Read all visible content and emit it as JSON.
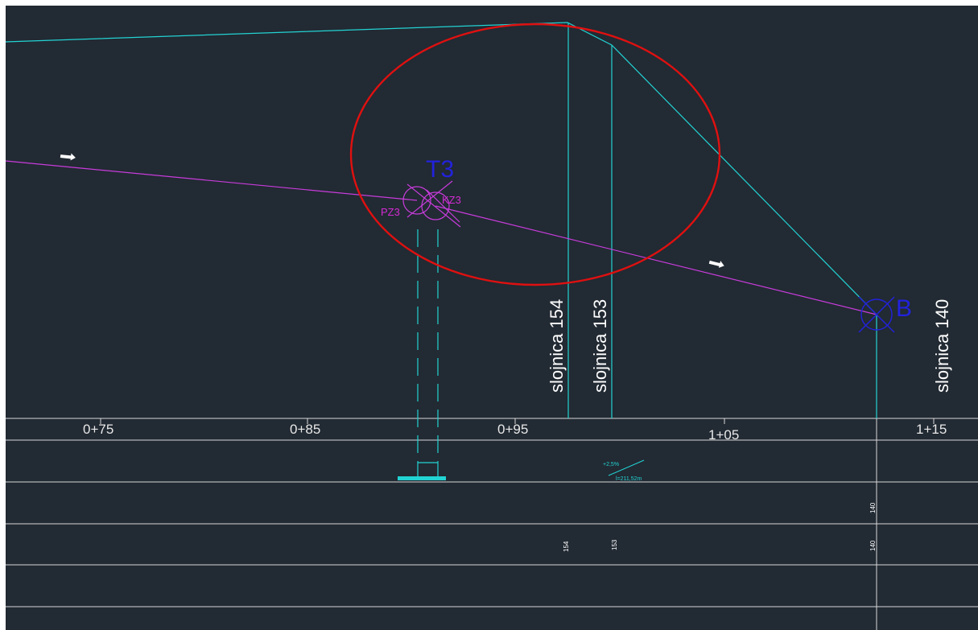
{
  "colors": {
    "background": "#222a33",
    "frame": "#ffffff",
    "terrain": "#22d3d3",
    "pipe": "#c83cdc",
    "highlight": "#e01010",
    "node_blue": "#2222dd",
    "label_magenta": "#d42ad4"
  },
  "stations": [
    {
      "label": "0+75"
    },
    {
      "label": "0+85"
    },
    {
      "label": "0+95"
    },
    {
      "label": "1+05"
    },
    {
      "label": "1+15"
    }
  ],
  "contours": [
    {
      "label": "slojnica 154",
      "band_label": "154"
    },
    {
      "label": "slojnica 153",
      "band_label": "153"
    },
    {
      "label": "slojnica 140",
      "band_label": "140",
      "band_label_upper": "140"
    }
  ],
  "nodes": {
    "t3": {
      "label": "T3",
      "pz": "PZ3",
      "kz": "KZ3"
    },
    "b": {
      "label": "B"
    }
  },
  "slope": {
    "grade": "+2,5%",
    "length": "l=211,52m"
  },
  "icons": [
    "flow-arrow-icon",
    "flow-arrow-icon",
    "node-symbol-icon"
  ]
}
